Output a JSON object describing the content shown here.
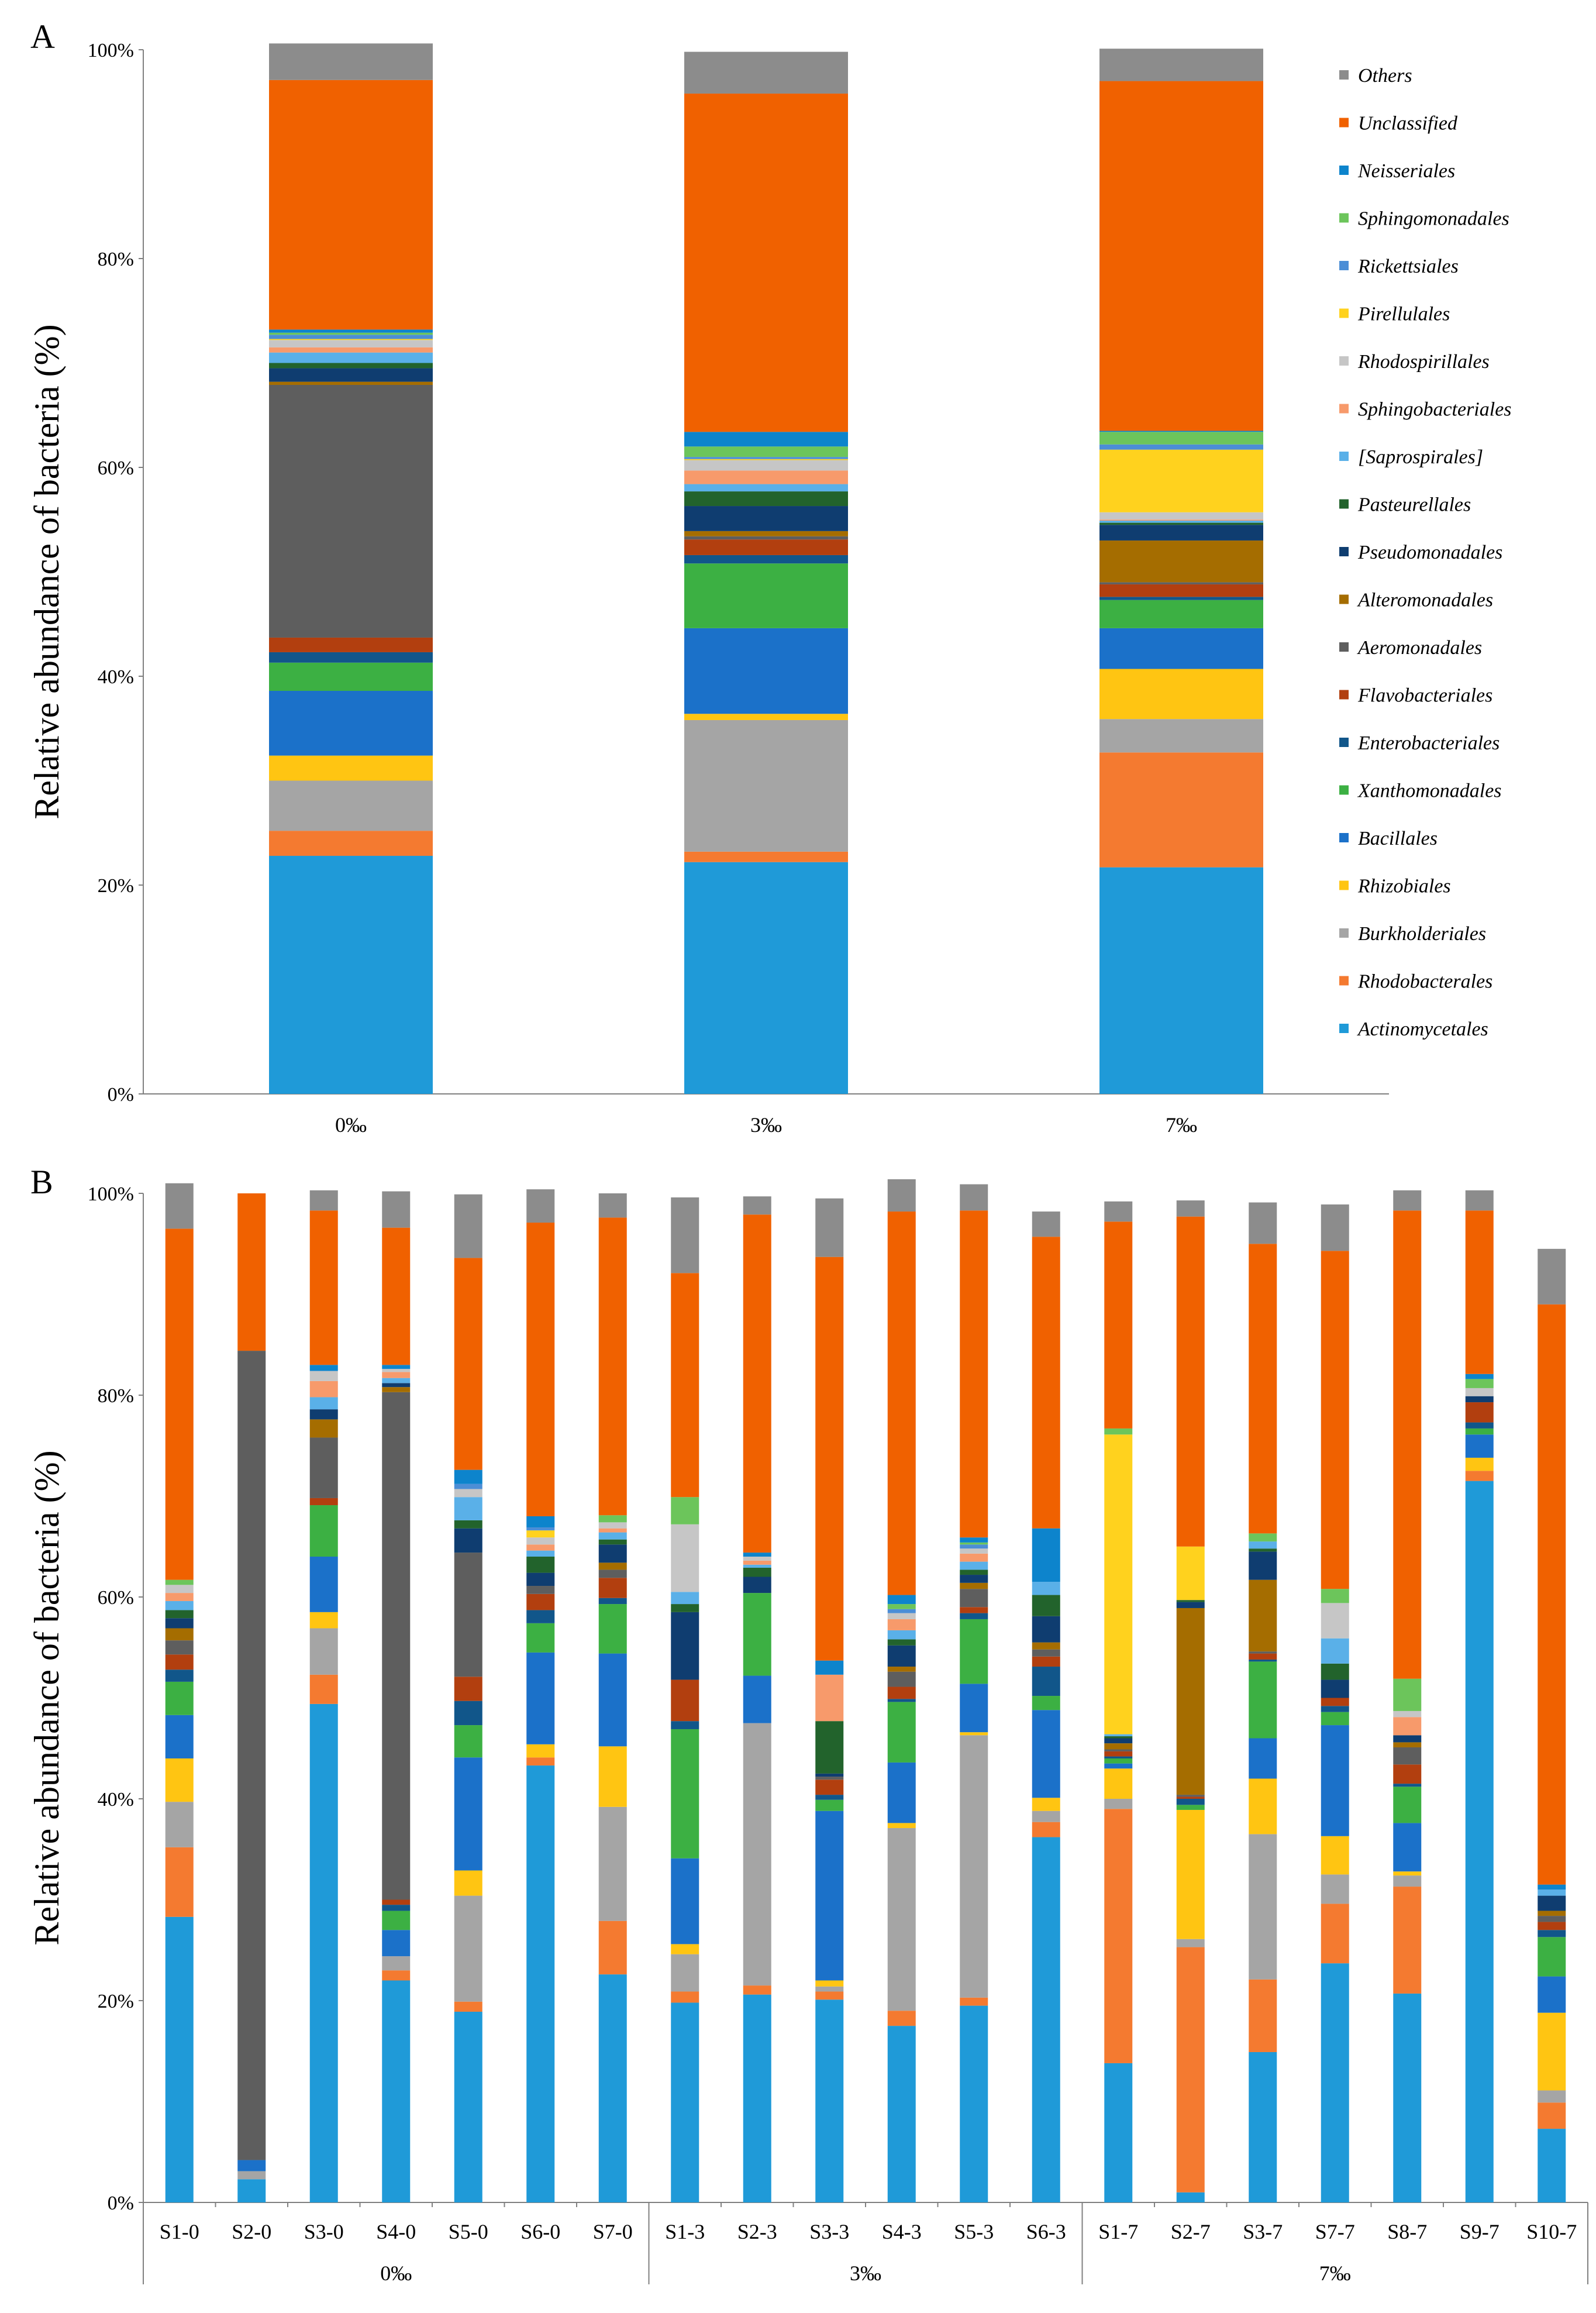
{
  "colors": {
    "Actinomycetales": "#1f9ad8",
    "Rhodobacterales": "#f47a30",
    "Burkholderiales": "#a5a5a5",
    "Rhizobiales": "#ffc512",
    "Bacillales": "#1b71c9",
    "Xanthomonadales": "#3cb043",
    "Enterobacteriales": "#11568a",
    "Flavobacteriales": "#b23f0f",
    "Aeromonadales": "#5e5e5e",
    "Alteromonadales": "#a56d00",
    "Pseudomonadales": "#0f3d70",
    "Pasteurellales": "#22632c",
    "[Saprospirales]": "#5ab0e8",
    "Sphingobacteriales": "#f79a6b",
    "Rhodospirillales": "#c6c6c6",
    "Pirellulales": "#ffd21e",
    "Rickettsiales": "#4c8ed6",
    "Sphingomonadales": "#6cc55b",
    "Neisseriales": "#0d84cc",
    "Unclassified": "#f06100",
    "Others": "#8c8c8c"
  },
  "chart_data": [
    {
      "panel": "A",
      "type": "bar",
      "stacked": true,
      "ylabel": "Relative abundance of bacteria (%)",
      "ylim": [
        0,
        100
      ],
      "yticks": [
        "0%",
        "20%",
        "40%",
        "60%",
        "80%",
        "100%"
      ],
      "categories": [
        "0‰",
        "3‰",
        "7‰"
      ],
      "legend_position": "right",
      "series": [
        {
          "name": "Actinomycetales",
          "values": [
            22.8,
            22.2,
            21.7
          ]
        },
        {
          "name": "Rhodobacterales",
          "values": [
            2.4,
            1.0,
            11.0
          ]
        },
        {
          "name": "Burkholderiales",
          "values": [
            4.8,
            12.6,
            3.2
          ]
        },
        {
          "name": "Rhizobiales",
          "values": [
            2.4,
            0.6,
            4.8
          ]
        },
        {
          "name": "Bacillales",
          "values": [
            6.2,
            8.2,
            3.9
          ]
        },
        {
          "name": "Xanthomonadales",
          "values": [
            2.7,
            6.2,
            2.7
          ]
        },
        {
          "name": "Enterobacteriales",
          "values": [
            1.0,
            0.8,
            0.3
          ]
        },
        {
          "name": "Flavobacteriales",
          "values": [
            1.4,
            1.5,
            1.2
          ]
        },
        {
          "name": "Aeromonadales",
          "values": [
            24.2,
            0.3,
            0.2
          ]
        },
        {
          "name": "Alteromonadales",
          "values": [
            0.3,
            0.5,
            4.0
          ]
        },
        {
          "name": "Pseudomonadales",
          "values": [
            1.3,
            2.4,
            1.5
          ]
        },
        {
          "name": "Pasteurellales",
          "values": [
            0.5,
            1.4,
            0.2
          ]
        },
        {
          "name": "[Saprospirales]",
          "values": [
            1.0,
            0.7,
            0.2
          ]
        },
        {
          "name": "Sphingobacteriales",
          "values": [
            0.5,
            1.3,
            0.1
          ]
        },
        {
          "name": "Rhodospirillales",
          "values": [
            0.7,
            1.0,
            0.7
          ]
        },
        {
          "name": "Pirellulales",
          "values": [
            0.1,
            0.1,
            6.0
          ]
        },
        {
          "name": "Rickettsiales",
          "values": [
            0.4,
            0.2,
            0.5
          ]
        },
        {
          "name": "Sphingomonadales",
          "values": [
            0.2,
            1.0,
            1.2
          ]
        },
        {
          "name": "Neisseriales",
          "values": [
            0.3,
            1.4,
            0.1
          ]
        },
        {
          "name": "Unclassified",
          "values": [
            23.9,
            32.4,
            33.5
          ]
        },
        {
          "name": "Others",
          "values": [
            3.5,
            4.0,
            3.1
          ]
        }
      ]
    },
    {
      "panel": "B",
      "type": "bar",
      "stacked": true,
      "ylabel": "Relative abundance of bacteria (%)",
      "ylim": [
        0,
        100
      ],
      "yticks": [
        "0%",
        "20%",
        "40%",
        "60%",
        "80%",
        "100%"
      ],
      "categories": [
        "S1-0",
        "S2-0",
        "S3-0",
        "S4-0",
        "S5-0",
        "S6-0",
        "S7-0",
        "S1-3",
        "S2-3",
        "S3-3",
        "S4-3",
        "S5-3",
        "S6-3",
        "S1-7",
        "S2-7",
        "S3-7",
        "S7-7",
        "S8-7",
        "S9-7",
        "S10-7"
      ],
      "groups": [
        {
          "label": "0‰",
          "count": 7
        },
        {
          "label": "3‰",
          "count": 6
        },
        {
          "label": "7‰",
          "count": 7
        }
      ],
      "series": [
        {
          "name": "Actinomycetales",
          "values": [
            28.3,
            2.3,
            49.4,
            22.0,
            18.9,
            43.3,
            22.6,
            19.8,
            20.6,
            20.1,
            17.5,
            19.5,
            36.2,
            13.8,
            1.0,
            14.9,
            23.7,
            20.7,
            71.5,
            7.3
          ]
        },
        {
          "name": "Rhodobacterales",
          "values": [
            6.9,
            0,
            2.9,
            1.0,
            1.0,
            0.8,
            5.3,
            1.1,
            0.9,
            0.8,
            1.5,
            0.8,
            1.5,
            25.2,
            24.3,
            7.2,
            5.9,
            10.6,
            1.0,
            2.6
          ]
        },
        {
          "name": "Burkholderiales",
          "values": [
            4.5,
            0.8,
            4.6,
            1.4,
            10.5,
            0,
            11.3,
            3.7,
            26.0,
            0.5,
            18.1,
            26.0,
            1.1,
            1.0,
            0.8,
            14.4,
            2.9,
            1.1,
            0,
            1.2
          ]
        },
        {
          "name": "Rhizobiales",
          "values": [
            4.3,
            0,
            1.6,
            0,
            2.5,
            1.3,
            6.0,
            1.0,
            0,
            0.6,
            0.5,
            0.3,
            1.3,
            3.0,
            12.8,
            5.5,
            3.8,
            0.4,
            1.3,
            7.7
          ]
        },
        {
          "name": "Bacillales",
          "values": [
            4.3,
            1.1,
            5.5,
            2.6,
            11.2,
            9.1,
            9.2,
            8.5,
            4.7,
            16.8,
            6.0,
            4.8,
            8.7,
            0.5,
            0,
            4.0,
            11.0,
            4.8,
            2.3,
            3.6
          ]
        },
        {
          "name": "Xanthomonadales",
          "values": [
            3.3,
            0,
            5.1,
            1.9,
            3.2,
            2.9,
            4.9,
            12.8,
            8.2,
            1.1,
            6.0,
            6.4,
            1.4,
            0.5,
            0.5,
            7.6,
            1.3,
            3.6,
            0.6,
            3.9
          ]
        },
        {
          "name": "Enterobacteriales",
          "values": [
            1.2,
            0,
            0,
            0.6,
            2.4,
            1.3,
            0.6,
            0.8,
            0,
            0.5,
            0.3,
            0.6,
            2.9,
            0.2,
            0.6,
            0.2,
            0.6,
            0.3,
            0.6,
            0.7
          ]
        },
        {
          "name": "Flavobacteriales",
          "values": [
            1.5,
            0,
            0.7,
            0.5,
            2.4,
            1.6,
            2.0,
            4.1,
            0,
            1.5,
            1.2,
            0.6,
            1.0,
            0.5,
            0.2,
            0.6,
            0.8,
            1.9,
            2.0,
            0.8
          ]
        },
        {
          "name": "Aeromonadales",
          "values": [
            1.4,
            80.2,
            6.0,
            50.3,
            12.3,
            0.8,
            0.8,
            0,
            0,
            0.3,
            1.5,
            1.8,
            0.7,
            0.2,
            0.2,
            0.2,
            0,
            1.7,
            0,
            0.6
          ]
        },
        {
          "name": "Alteromonadales",
          "values": [
            1.2,
            0,
            1.8,
            0.5,
            0,
            0,
            0.7,
            0,
            0,
            0,
            0.5,
            0.6,
            0.7,
            0.6,
            18.5,
            7.1,
            0,
            0.5,
            0,
            0.5
          ]
        },
        {
          "name": "Pseudomonadales",
          "values": [
            1.0,
            0,
            1.0,
            0.4,
            2.4,
            1.3,
            1.8,
            6.7,
            1.6,
            0.3,
            2.1,
            0.8,
            2.6,
            0.5,
            0.6,
            2.8,
            1.8,
            0.7,
            0.6,
            1.5
          ]
        },
        {
          "name": "Pasteurellales",
          "values": [
            0.8,
            0,
            0,
            0,
            0.8,
            1.6,
            0.5,
            0.8,
            0.9,
            5.2,
            0.6,
            0.5,
            2.1,
            0.2,
            0.2,
            0.3,
            1.6,
            0,
            0,
            0
          ]
        },
        {
          "name": "[Saprospirales]",
          "values": [
            0.9,
            0,
            1.2,
            0.5,
            2.3,
            0.6,
            0.7,
            1.2,
            0.3,
            0,
            0.9,
            0.8,
            1.3,
            0.2,
            0,
            0.7,
            2.5,
            0,
            0,
            0.6
          ]
        },
        {
          "name": "Sphingobacteriales",
          "values": [
            0.8,
            0,
            1.6,
            0.6,
            0,
            0.6,
            0.4,
            0,
            0.4,
            4.6,
            1.1,
            0.8,
            0,
            0,
            0,
            0,
            0,
            1.8,
            0,
            0
          ]
        },
        {
          "name": "Rhodospirillales",
          "values": [
            0.8,
            0,
            1.0,
            0.3,
            0.8,
            0.7,
            0.6,
            6.7,
            0.4,
            0,
            0.6,
            0.5,
            0,
            0,
            0,
            0,
            3.5,
            0.6,
            0.8,
            0
          ]
        },
        {
          "name": "Pirellulales",
          "values": [
            0,
            0,
            0,
            0,
            0,
            0.7,
            0,
            0,
            0,
            0,
            0,
            0,
            0,
            29.7,
            5.3,
            0,
            0,
            0,
            0,
            0
          ]
        },
        {
          "name": "Rickettsiales",
          "values": [
            0,
            0,
            0,
            0,
            0.5,
            0.3,
            0,
            0,
            0,
            0,
            0.4,
            0.4,
            0,
            0,
            0,
            0,
            0,
            0,
            0,
            0
          ]
        },
        {
          "name": "Sphingomonadales",
          "values": [
            0.5,
            0,
            0,
            0,
            0,
            0,
            0.7,
            2.7,
            0,
            0,
            0.5,
            0.2,
            0,
            0.6,
            0,
            0.8,
            1.4,
            3.2,
            0.9,
            0
          ]
        },
        {
          "name": "Neisseriales",
          "values": [
            0,
            0,
            0.6,
            0.4,
            1.4,
            1.1,
            0,
            0,
            0.4,
            1.4,
            0.9,
            0.5,
            5.3,
            0,
            0,
            0,
            0,
            0,
            0.5,
            0.5
          ]
        },
        {
          "name": "Unclassified",
          "values": [
            34.8,
            15.6,
            15.3,
            13.6,
            21.0,
            29.1,
            29.5,
            22.2,
            33.5,
            40.0,
            38.0,
            32.4,
            28.9,
            20.5,
            32.7,
            28.7,
            33.5,
            46.4,
            16.2,
            57.5
          ]
        },
        {
          "name": "Others",
          "values": [
            4.5,
            0,
            2.0,
            3.6,
            6.3,
            3.3,
            2.4,
            7.5,
            1.8,
            5.8,
            3.2,
            2.6,
            2.5,
            2.0,
            1.6,
            4.1,
            4.6,
            2.0,
            2.0,
            5.5
          ]
        }
      ]
    }
  ]
}
